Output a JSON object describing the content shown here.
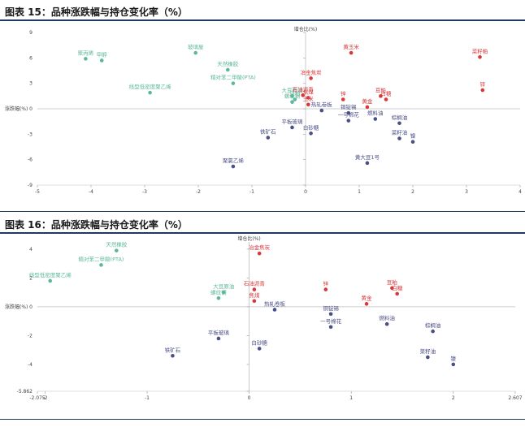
{
  "figures": [
    {
      "title": "图表 15：品种涨跌幅与持仓变化率（%）"
    },
    {
      "title": "图表 16：品种涨跌幅与持仓变化率（%）"
    }
  ],
  "colors": {
    "green": "#5cb89a",
    "red": "#d9383a",
    "navy": "#4a4f86",
    "rule": "#1f3864"
  },
  "chart_data": [
    {
      "type": "scatter",
      "title": "图表 15：品种涨跌幅与持仓变化率（%）",
      "xlabel": "涨跌幅(%)",
      "ylabel": "增仓比(%)",
      "xlim": [
        -5,
        4
      ],
      "ylim": [
        -9,
        9
      ],
      "x_ticks": [
        -5,
        -4,
        -3,
        -2,
        -1,
        0,
        1,
        2,
        3,
        4
      ],
      "x_tick_labels": [
        "-5",
        "-4",
        "-3",
        "-2",
        "-1",
        "0",
        "1",
        "2",
        "3",
        "4"
      ],
      "y_ticks": [
        -9,
        -6,
        -3,
        0,
        3,
        6,
        9
      ],
      "y_tick_labels": [
        "-9",
        "-6",
        "-3",
        "0",
        "3",
        "6",
        "9"
      ],
      "points": [
        {
          "label": "聚丙烯",
          "x": -4.1,
          "y": 5.9,
          "color": "green"
        },
        {
          "label": "甲醇",
          "x": -3.8,
          "y": 5.7,
          "color": "green"
        },
        {
          "label": "线型低密度聚乙烯",
          "x": -2.9,
          "y": 1.9,
          "color": "green"
        },
        {
          "label": "玻璃屋",
          "x": -2.05,
          "y": 6.6,
          "color": "green"
        },
        {
          "label": "天然橡胶",
          "x": -1.45,
          "y": 4.6,
          "color": "green"
        },
        {
          "label": "精对苯二甲酸(PTA)",
          "x": -1.35,
          "y": 3.0,
          "color": "green"
        },
        {
          "label": "大豆原油",
          "x": -0.25,
          "y": 1.5,
          "color": "green"
        },
        {
          "label": "螺纹钢",
          "x": -0.25,
          "y": 0.8,
          "color": "green"
        },
        {
          "label": "豆粕",
          "x": -0.2,
          "y": 1.1,
          "color": "green"
        },
        {
          "label": "冶金焦炭",
          "x": 0.1,
          "y": 3.6,
          "color": "red"
        },
        {
          "label": "石油沥青",
          "x": -0.05,
          "y": 1.6,
          "color": "red"
        },
        {
          "label": "焦煤",
          "x": 0.05,
          "y": 1.3,
          "color": "red"
        },
        {
          "label": "玉米",
          "x": 0.05,
          "y": 0.5,
          "color": "red"
        },
        {
          "label": "黄玉米",
          "x": 0.85,
          "y": 6.6,
          "color": "red"
        },
        {
          "label": "锌",
          "x": 0.7,
          "y": 1.1,
          "color": "red"
        },
        {
          "label": "菜籽粕",
          "x": 3.25,
          "y": 6.1,
          "color": "red"
        },
        {
          "label": "锌",
          "x": 3.3,
          "y": 2.2,
          "color": "red"
        },
        {
          "label": "豆粕",
          "x": 1.4,
          "y": 1.5,
          "color": "red"
        },
        {
          "label": "白糖",
          "x": 1.5,
          "y": 1.1,
          "color": "red"
        },
        {
          "label": "黄金",
          "x": 1.15,
          "y": 0.2,
          "color": "red"
        },
        {
          "label": "热轧卷板",
          "x": 0.3,
          "y": -0.2,
          "color": "navy"
        },
        {
          "label": "铁矿石",
          "x": -0.7,
          "y": -3.4,
          "color": "navy"
        },
        {
          "label": "平板玻璃",
          "x": -0.25,
          "y": -2.2,
          "color": "navy"
        },
        {
          "label": "白砂糖",
          "x": 0.1,
          "y": -2.9,
          "color": "navy"
        },
        {
          "label": "聚氯乙烯",
          "x": -1.35,
          "y": -6.8,
          "color": "navy"
        },
        {
          "label": "铜锭锡",
          "x": 0.8,
          "y": -0.5,
          "color": "navy"
        },
        {
          "label": "一号棉花",
          "x": 0.8,
          "y": -1.4,
          "color": "navy"
        },
        {
          "label": "燃料油",
          "x": 1.3,
          "y": -1.2,
          "color": "navy"
        },
        {
          "label": "棕榈油",
          "x": 1.75,
          "y": -1.7,
          "color": "navy"
        },
        {
          "label": "菜籽油",
          "x": 1.75,
          "y": -3.5,
          "color": "navy"
        },
        {
          "label": "镍",
          "x": 2.0,
          "y": -3.9,
          "color": "navy"
        },
        {
          "label": "黄大豆1号",
          "x": 1.15,
          "y": -6.4,
          "color": "navy"
        }
      ]
    },
    {
      "type": "scatter",
      "title": "图表 16：品种涨跌幅与持仓变化率（%）",
      "xlabel": "涨跌幅(%)",
      "ylabel": "增仓比(%)",
      "xlim": [
        -2.075,
        2.607
      ],
      "ylim": [
        -5.862,
        4.5
      ],
      "x_ticks": [
        -2.075,
        -2,
        -1,
        0,
        1,
        2,
        2.607
      ],
      "x_tick_labels": [
        "-2.075",
        "-2",
        "-1",
        "0",
        "1",
        "2",
        "2.607"
      ],
      "y_ticks": [
        -5.862,
        -4,
        -2,
        0,
        2,
        4
      ],
      "y_tick_labels": [
        "-5.862",
        "-4",
        "-2",
        "0",
        "2",
        "4"
      ],
      "points": [
        {
          "label": "天然橡胶",
          "x": -1.3,
          "y": 3.9,
          "color": "green"
        },
        {
          "label": "精对苯二甲酸(PTA)",
          "x": -1.45,
          "y": 2.9,
          "color": "green"
        },
        {
          "label": "线型低密度聚乙烯",
          "x": -1.95,
          "y": 1.8,
          "color": "green"
        },
        {
          "label": "大豆原油",
          "x": -0.25,
          "y": 1.0,
          "color": "green"
        },
        {
          "label": "螺纹钢",
          "x": -0.3,
          "y": 0.6,
          "color": "green"
        },
        {
          "label": "冶金焦炭",
          "x": 0.1,
          "y": 3.7,
          "color": "red"
        },
        {
          "label": "石油沥青",
          "x": 0.05,
          "y": 1.2,
          "color": "red"
        },
        {
          "label": "焦煤",
          "x": 0.05,
          "y": 0.4,
          "color": "red"
        },
        {
          "label": "锌",
          "x": 0.75,
          "y": 1.2,
          "color": "red"
        },
        {
          "label": "黄金",
          "x": 1.15,
          "y": 0.2,
          "color": "red"
        },
        {
          "label": "豆粕",
          "x": 1.4,
          "y": 1.3,
          "color": "red"
        },
        {
          "label": "白糖",
          "x": 1.45,
          "y": 0.9,
          "color": "red"
        },
        {
          "label": "热轧卷板",
          "x": 0.25,
          "y": -0.2,
          "color": "navy"
        },
        {
          "label": "铜锭锡",
          "x": 0.8,
          "y": -0.5,
          "color": "navy"
        },
        {
          "label": "一号棉花",
          "x": 0.8,
          "y": -1.4,
          "color": "navy"
        },
        {
          "label": "燃料油",
          "x": 1.35,
          "y": -1.2,
          "color": "navy"
        },
        {
          "label": "棕榈油",
          "x": 1.8,
          "y": -1.7,
          "color": "navy"
        },
        {
          "label": "菜籽油",
          "x": 1.75,
          "y": -3.5,
          "color": "navy"
        },
        {
          "label": "镍",
          "x": 2.0,
          "y": -4.0,
          "color": "navy"
        },
        {
          "label": "平板玻璃",
          "x": -0.3,
          "y": -2.2,
          "color": "navy"
        },
        {
          "label": "白砂糖",
          "x": 0.1,
          "y": -2.9,
          "color": "navy"
        },
        {
          "label": "铁矿石",
          "x": -0.75,
          "y": -3.4,
          "color": "navy"
        }
      ]
    }
  ]
}
